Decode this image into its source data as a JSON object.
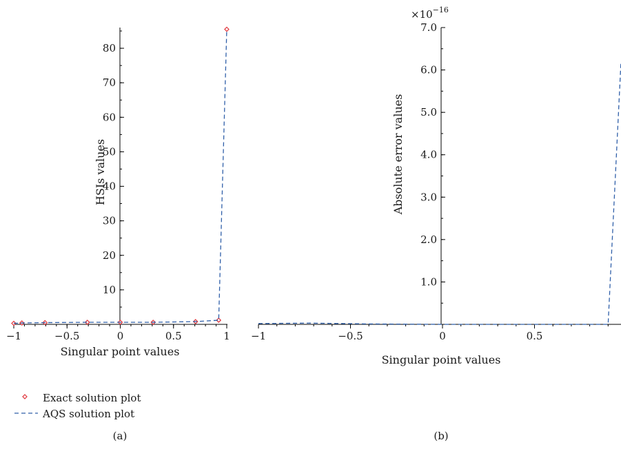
{
  "chart_data": [
    {
      "type": "line",
      "panel": "(a)",
      "xlabel": "Singular point values",
      "ylabel": "HSIs values",
      "xlim": [
        -1,
        1
      ],
      "ylim": [
        0,
        86
      ],
      "x_ticks": [
        -1,
        -0.5,
        0,
        0.5,
        1
      ],
      "x_tick_labels": [
        "−1",
        "−0.5",
        "0",
        "0.5",
        "1"
      ],
      "y_ticks": [
        10,
        20,
        30,
        40,
        50,
        60,
        70,
        80
      ],
      "y_tick_labels": [
        "10",
        "20",
        "30",
        "40",
        "50",
        "60",
        "70",
        "80"
      ],
      "series": [
        {
          "name": "Exact solution plot",
          "style": "diamond-markers",
          "color": "#e0343a",
          "x": [
            -1,
            -0.924,
            -0.707,
            -0.309,
            0,
            0.309,
            0.707,
            0.924,
            1
          ],
          "y": [
            0.3,
            0.4,
            0.5,
            0.6,
            0.6,
            0.6,
            0.8,
            1.2,
            85.5
          ]
        },
        {
          "name": "AQS solution plot",
          "style": "dashed-line",
          "color": "#2e5ea8",
          "x": [
            -1,
            -0.924,
            -0.707,
            -0.309,
            0,
            0.309,
            0.707,
            0.924,
            1
          ],
          "y": [
            0.3,
            0.4,
            0.5,
            0.6,
            0.6,
            0.6,
            0.8,
            1.2,
            85.5
          ]
        }
      ]
    },
    {
      "type": "line",
      "panel": "(b)",
      "xlabel": "Singular point values",
      "ylabel": "Absolute error values",
      "scale_label": "×10",
      "scale_exponent": "−16",
      "xlim": [
        -1,
        0.97
      ],
      "ylim": [
        0,
        7.0
      ],
      "x_ticks": [
        -1,
        -0.5,
        0,
        0.5
      ],
      "x_tick_labels": [
        "−1",
        "−0.5",
        "0",
        "0.5"
      ],
      "y_ticks": [
        1,
        2,
        3,
        4,
        5,
        6,
        7
      ],
      "y_tick_labels": [
        "1.0",
        "2.0",
        "3.0",
        "4.0",
        "5.0",
        "6.0",
        "7.0"
      ],
      "series": [
        {
          "style": "dashed-line",
          "color": "#2e5ea8",
          "x": [
            -1,
            -0.72,
            -0.4,
            0,
            0.5,
            0.9,
            0.97
          ],
          "y": [
            0.02,
            0.03,
            0.01,
            0.0,
            0.0,
            0.0,
            6.2
          ]
        }
      ]
    }
  ],
  "legend": {
    "placement": "bottom-left",
    "items": [
      {
        "label": "Exact solution plot",
        "marker": "diamond",
        "color": "#e0343a"
      },
      {
        "label": "AQS solution plot",
        "marker": "dashed",
        "color": "#2e5ea8"
      }
    ]
  }
}
